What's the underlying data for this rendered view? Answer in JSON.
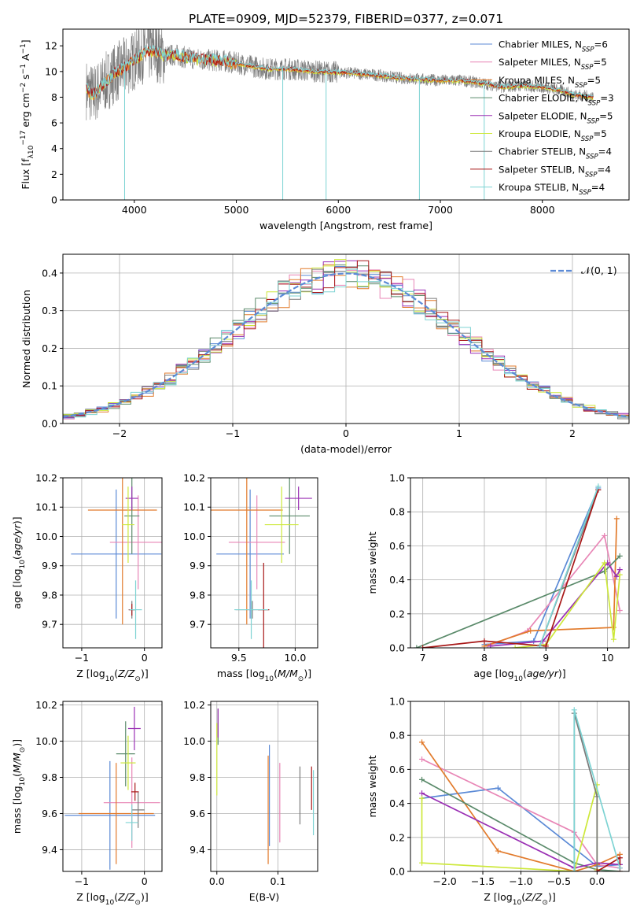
{
  "figure_title": "PLATE=0909, MJD=52379, FIBERID=0377, z=0.071",
  "colors": {
    "Chabrier MILES": "#5b8ad6",
    "Salpeter MILES": "#e886b6",
    "Kroupa MILES": "#e27b2c",
    "Chabrier ELODIE": "#5a8a6a",
    "Salpeter ELODIE": "#9a2fb4",
    "Kroupa ELODIE": "#cde83a",
    "Chabrier STELIB": "#7a7a7a",
    "Salpeter STELIB": "#a81818",
    "Kroupa STELIB": "#7dd3d3",
    "gaussian": "#5b8ad6",
    "grid": "#b0b0b0"
  },
  "chart_data": [
    {
      "type": "line",
      "id": "spectrum",
      "xlabel": "wavelength [Angstrom, rest frame]",
      "ylabel_parts": [
        "Flux [f",
        "λ",
        "10",
        "−17",
        " erg cm",
        "−2",
        " s",
        "−1",
        " A",
        "−1",
        "]"
      ],
      "xlim": [
        3300,
        8850
      ],
      "ylim": [
        0,
        13.3
      ],
      "xticks": [
        4000,
        5000,
        6000,
        7000,
        8000
      ],
      "yticks": [
        0,
        2,
        4,
        6,
        8,
        10,
        12
      ],
      "grid": false,
      "legend_position": "top-right",
      "series": [
        {
          "label": "Chabrier MILES",
          "nssp": "6"
        },
        {
          "label": "Salpeter MILES",
          "nssp": "5"
        },
        {
          "label": "Kroupa MILES",
          "nssp": "5"
        },
        {
          "label": "Chabrier ELODIE",
          "nssp": "3"
        },
        {
          "label": "Salpeter ELODIE",
          "nssp": "5"
        },
        {
          "label": "Kroupa ELODIE",
          "nssp": "5"
        },
        {
          "label": "Chabrier STELIB",
          "nssp": "4"
        },
        {
          "label": "Salpeter STELIB",
          "nssp": "4"
        },
        {
          "label": "Kroupa STELIB",
          "nssp": "4"
        }
      ],
      "continuum": {
        "x": [
          3530,
          3600,
          3700,
          3800,
          3900,
          4000,
          4100,
          4200,
          4300,
          4400,
          4500,
          4700,
          4900,
          5100,
          5300,
          5500,
          5800,
          6100,
          6400,
          6600,
          6800,
          7000,
          7200,
          7400,
          7600,
          7800,
          8000,
          8200,
          8300,
          8400,
          8500
        ],
        "y": [
          8.6,
          8.2,
          9.0,
          9.8,
          10.3,
          10.9,
          11.5,
          11.6,
          11.2,
          11.3,
          11.1,
          10.9,
          10.8,
          10.5,
          10.2,
          10.2,
          10.0,
          9.9,
          9.7,
          9.5,
          9.4,
          9.3,
          9.3,
          9.1,
          8.8,
          8.9,
          8.8,
          8.5,
          8.2,
          8.1,
          8.0
        ]
      },
      "data_noise_amplitude": 1.6,
      "dips": [
        {
          "x": 3905,
          "y": 0.0
        },
        {
          "x": 5455,
          "y": 0.0
        },
        {
          "x": 5880,
          "y": 0.0
        },
        {
          "x": 6795,
          "y": 0.0
        },
        {
          "x": 7430,
          "y": 0.0
        }
      ]
    },
    {
      "type": "bar",
      "id": "residual-histogram",
      "xlabel": "(data-model)/error",
      "ylabel": "Normed distribution",
      "xlim": [
        -2.5,
        2.5
      ],
      "ylim": [
        0,
        0.45
      ],
      "xticks": [
        -2,
        -1,
        0,
        1,
        2
      ],
      "yticks": [
        0.0,
        0.1,
        0.2,
        0.3,
        0.4
      ],
      "grid": true,
      "legend_position": "top-right",
      "legend_label_parts": [
        "𝒩",
        "(0, 1)"
      ],
      "bin_width": 0.1,
      "mean": 0,
      "sigma": 1
    },
    {
      "type": "scatter",
      "id": "age-vs-Z",
      "xlabel_parts": [
        "Z [log",
        "10",
        "(",
        "Z/Z",
        "⊙",
        ")]"
      ],
      "ylabel_parts": [
        "age  [log",
        "10",
        "(",
        "age/yr",
        ")]"
      ],
      "xlim": [
        -1.3,
        0.28
      ],
      "ylim": [
        9.62,
        10.2
      ],
      "xticks": [
        -1,
        0
      ],
      "yticks": [
        9.7,
        9.8,
        9.9,
        10.0,
        10.1,
        10.2
      ],
      "grid": true,
      "points": [
        {
          "series": "Chabrier MILES",
          "x": -0.45,
          "xerr": 0.72,
          "y": 9.94,
          "yerr": 0.22
        },
        {
          "series": "Salpeter MILES",
          "x": -0.1,
          "xerr": 0.45,
          "y": 9.98,
          "yerr": 0.16
        },
        {
          "series": "Kroupa MILES",
          "x": -0.35,
          "xerr": 0.55,
          "y": 10.09,
          "yerr": 0.39
        },
        {
          "series": "Chabrier ELODIE",
          "x": -0.2,
          "xerr": 0.12,
          "y": 10.07,
          "yerr": 0.13
        },
        {
          "series": "Salpeter ELODIE",
          "x": -0.2,
          "xerr": 0.1,
          "y": 10.13,
          "yerr": 0.04
        },
        {
          "series": "Kroupa ELODIE",
          "x": -0.26,
          "xerr": 0.1,
          "y": 10.04,
          "yerr": 0.13
        },
        {
          "series": "Chabrier STELIB",
          "x": -0.2,
          "xerr": 0.05,
          "y": 9.75,
          "yerr": 0.03
        },
        {
          "series": "Salpeter STELIB",
          "x": -0.2,
          "xerr": 0.05,
          "y": 9.75,
          "yerr": 0.02
        },
        {
          "series": "Kroupa STELIB",
          "x": -0.14,
          "xerr": 0.1,
          "y": 9.75,
          "yerr": 0.1
        }
      ]
    },
    {
      "type": "scatter",
      "id": "age-vs-mass",
      "xlabel_parts": [
        "mass [log",
        "10",
        "(",
        "M/M",
        "⊙",
        ")]"
      ],
      "ylabel_parts": [],
      "xlim": [
        9.25,
        10.2
      ],
      "ylim": [
        9.62,
        10.2
      ],
      "xticks": [
        9.5,
        10.0
      ],
      "yticks": [
        9.7,
        9.8,
        9.9,
        10.0,
        10.1,
        10.2
      ],
      "grid": true,
      "points": [
        {
          "series": "Chabrier MILES",
          "x": 9.6,
          "xerr": 0.3,
          "y": 9.94,
          "yerr": 0.22
        },
        {
          "series": "Salpeter MILES",
          "x": 9.66,
          "xerr": 0.25,
          "y": 9.98,
          "yerr": 0.16
        },
        {
          "series": "Kroupa MILES",
          "x": 9.57,
          "xerr": 0.32,
          "y": 10.09,
          "yerr": 0.39
        },
        {
          "series": "Chabrier ELODIE",
          "x": 9.95,
          "xerr": 0.18,
          "y": 10.07,
          "yerr": 0.13
        },
        {
          "series": "Salpeter ELODIE",
          "x": 10.03,
          "xerr": 0.12,
          "y": 10.13,
          "yerr": 0.04
        },
        {
          "series": "Kroupa ELODIE",
          "x": 9.88,
          "xerr": 0.15,
          "y": 10.04,
          "yerr": 0.13
        },
        {
          "series": "Chabrier STELIB",
          "x": 9.62,
          "xerr": 0.15,
          "y": 9.75,
          "yerr": 0.03
        },
        {
          "series": "Salpeter STELIB",
          "x": 9.72,
          "xerr": 0.05,
          "y": 9.75,
          "yerr": 0.16
        },
        {
          "series": "Kroupa STELIB",
          "x": 9.61,
          "xerr": 0.15,
          "y": 9.75,
          "yerr": 0.1
        }
      ]
    },
    {
      "type": "line",
      "id": "mass-weight-vs-age",
      "xlabel_parts": [
        "age  [log",
        "10",
        "(",
        "age/yr",
        ")]"
      ],
      "ylabel": "mass weight",
      "xlim": [
        6.8,
        10.35
      ],
      "ylim": [
        0,
        1.0
      ],
      "xticks": [
        7,
        8,
        9,
        10
      ],
      "yticks": [
        0.0,
        0.2,
        0.4,
        0.6,
        0.8,
        1.0
      ],
      "grid": true,
      "series": [
        {
          "name": "Chabrier MILES",
          "x": [
            8.0,
            8.8,
            9.85
          ],
          "y": [
            0.02,
            0.04,
            0.94
          ]
        },
        {
          "name": "Salpeter MILES",
          "x": [
            8.05,
            8.7,
            9.95,
            10.2
          ],
          "y": [
            0.01,
            0.1,
            0.66,
            0.22
          ]
        },
        {
          "name": "Kroupa MILES",
          "x": [
            8.0,
            8.75,
            10.1,
            10.15
          ],
          "y": [
            0.01,
            0.1,
            0.12,
            0.76
          ]
        },
        {
          "name": "Chabrier ELODIE",
          "x": [
            6.9,
            9.95,
            10.2
          ],
          "y": [
            0.0,
            0.45,
            0.54
          ]
        },
        {
          "name": "Salpeter ELODIE",
          "x": [
            8.1,
            8.95,
            10.0,
            10.15,
            10.2
          ],
          "y": [
            0.01,
            0.04,
            0.5,
            0.42,
            0.46
          ]
        },
        {
          "name": "Kroupa ELODIE",
          "x": [
            8.5,
            9.0,
            9.95,
            10.1,
            10.2
          ],
          "y": [
            0.0,
            0.02,
            0.5,
            0.05,
            0.43
          ]
        },
        {
          "name": "Chabrier STELIB",
          "x": [
            8.9,
            9.85
          ],
          "y": [
            0.01,
            0.93
          ]
        },
        {
          "name": "Salpeter STELIB",
          "x": [
            7.0,
            8.0,
            9.0,
            9.85
          ],
          "y": [
            0.0,
            0.04,
            0.01,
            0.93
          ]
        },
        {
          "name": "Kroupa STELIB",
          "x": [
            8.9,
            9.85
          ],
          "y": [
            0.01,
            0.95
          ]
        }
      ]
    },
    {
      "type": "scatter",
      "id": "mass-vs-Z",
      "xlabel_parts": [
        "Z [log",
        "10",
        "(",
        "Z/Z",
        "⊙",
        ")]"
      ],
      "ylabel_parts": [
        "mass [log",
        "10",
        "(",
        "M/M",
        "⊙",
        ")]"
      ],
      "xlim": [
        -1.3,
        0.28
      ],
      "ylim": [
        9.28,
        10.22
      ],
      "xticks": [
        -1,
        0
      ],
      "yticks": [
        9.4,
        9.6,
        9.8,
        10.0,
        10.2
      ],
      "grid": true,
      "points": [
        {
          "series": "Chabrier MILES",
          "x": -0.55,
          "xerr": 0.72,
          "y": 9.59,
          "yerr": 0.3
        },
        {
          "series": "Salpeter MILES",
          "x": -0.2,
          "xerr": 0.45,
          "y": 9.66,
          "yerr": 0.25
        },
        {
          "series": "Kroupa MILES",
          "x": -0.45,
          "xerr": 0.6,
          "y": 9.6,
          "yerr": 0.28
        },
        {
          "series": "Chabrier ELODIE",
          "x": -0.3,
          "xerr": 0.15,
          "y": 9.93,
          "yerr": 0.18
        },
        {
          "series": "Salpeter ELODIE",
          "x": -0.16,
          "xerr": 0.1,
          "y": 10.07,
          "yerr": 0.12
        },
        {
          "series": "Kroupa ELODIE",
          "x": -0.26,
          "xerr": 0.12,
          "y": 9.88,
          "yerr": 0.15
        },
        {
          "series": "Chabrier STELIB",
          "x": -0.1,
          "xerr": 0.1,
          "y": 9.62,
          "yerr": 0.1
        },
        {
          "series": "Salpeter STELIB",
          "x": -0.15,
          "xerr": 0.06,
          "y": 9.72,
          "yerr": 0.05
        },
        {
          "series": "Kroupa STELIB",
          "x": -0.2,
          "xerr": 0.1,
          "y": 9.55,
          "yerr": 0.1
        }
      ]
    },
    {
      "type": "scatter",
      "id": "mass-vs-ebv",
      "xlabel": "E(B-V)",
      "ylabel_parts": [],
      "xlim": [
        -0.01,
        0.165
      ],
      "ylim": [
        9.28,
        10.22
      ],
      "xticks": [
        0.0,
        0.1
      ],
      "yticks": [
        9.4,
        9.6,
        9.8,
        10.0,
        10.2
      ],
      "grid": true,
      "points": [
        {
          "series": "Chabrier MILES",
          "x": 0.086,
          "xerr": 0,
          "y": 9.7,
          "yerr": 0.28
        },
        {
          "series": "Salpeter MILES",
          "x": 0.103,
          "xerr": 0,
          "y": 9.66,
          "yerr": 0.22
        },
        {
          "series": "Kroupa MILES",
          "x": 0.084,
          "xerr": 0,
          "y": 9.62,
          "yerr": 0.3
        },
        {
          "series": "Chabrier ELODIE",
          "x": 0.002,
          "xerr": 0,
          "y": 10.08,
          "yerr": 0.1
        },
        {
          "series": "Salpeter ELODIE",
          "x": 0.002,
          "xerr": 0,
          "y": 10.1,
          "yerr": 0.08
        },
        {
          "series": "Kroupa ELODIE",
          "x": 0.0,
          "xerr": 0,
          "y": 9.9,
          "yerr": 0.2
        },
        {
          "series": "Chabrier STELIB",
          "x": 0.136,
          "xerr": 0,
          "y": 9.7,
          "yerr": 0.16
        },
        {
          "series": "Salpeter STELIB",
          "x": 0.155,
          "xerr": 0,
          "y": 9.74,
          "yerr": 0.12
        },
        {
          "series": "Kroupa STELIB",
          "x": 0.158,
          "xerr": 0,
          "y": 9.66,
          "yerr": 0.18
        }
      ]
    },
    {
      "type": "line",
      "id": "mass-weight-vs-Z",
      "xlabel_parts": [
        "Z [log",
        "10",
        "(",
        "Z/Z",
        "⊙",
        ")]"
      ],
      "ylabel": "mass weight",
      "xlim": [
        -2.45,
        0.42
      ],
      "ylim": [
        0,
        1.0
      ],
      "xticks": [
        -2.0,
        -1.5,
        -1.0,
        -0.5,
        0.0
      ],
      "yticks": [
        0.0,
        0.2,
        0.4,
        0.6,
        0.8,
        1.0
      ],
      "grid": true,
      "series": [
        {
          "name": "Chabrier MILES",
          "x": [
            -2.3,
            -1.3,
            0.0,
            0.3
          ],
          "y": [
            0.43,
            0.49,
            0.03,
            0.04
          ]
        },
        {
          "name": "Salpeter MILES",
          "x": [
            -2.3,
            -0.3,
            0.0,
            0.3
          ],
          "y": [
            0.66,
            0.23,
            0.04,
            0.02
          ]
        },
        {
          "name": "Kroupa MILES",
          "x": [
            -2.3,
            -1.3,
            -0.3,
            0.0,
            0.3
          ],
          "y": [
            0.76,
            0.12,
            0.0,
            0.04,
            0.1
          ]
        },
        {
          "name": "Chabrier ELODIE",
          "x": [
            -2.3,
            -0.3,
            0.0,
            0.3
          ],
          "y": [
            0.54,
            0.05,
            0.01,
            0.0
          ]
        },
        {
          "name": "Salpeter ELODIE",
          "x": [
            -2.3,
            -0.3,
            0.0,
            0.3
          ],
          "y": [
            0.46,
            0.02,
            0.05,
            0.04
          ]
        },
        {
          "name": "Kroupa ELODIE",
          "x": [
            -2.3,
            -2.3,
            -0.3,
            0.0,
            0.0
          ],
          "y": [
            0.43,
            0.05,
            0.0,
            0.51,
            0.01
          ]
        },
        {
          "name": "Chabrier STELIB",
          "x": [
            -0.3,
            -0.3,
            0.0,
            0.0
          ],
          "y": [
            0.0,
            0.93,
            0.44,
            0.0
          ]
        },
        {
          "name": "Salpeter STELIB",
          "x": [
            0.0,
            0.0,
            0.3,
            0.3
          ],
          "y": [
            0.0,
            0.0,
            0.08,
            0.0
          ]
        },
        {
          "name": "Kroupa STELIB",
          "x": [
            -0.3,
            -0.3,
            0.3
          ],
          "y": [
            0.0,
            0.95,
            0.02
          ]
        }
      ]
    }
  ]
}
